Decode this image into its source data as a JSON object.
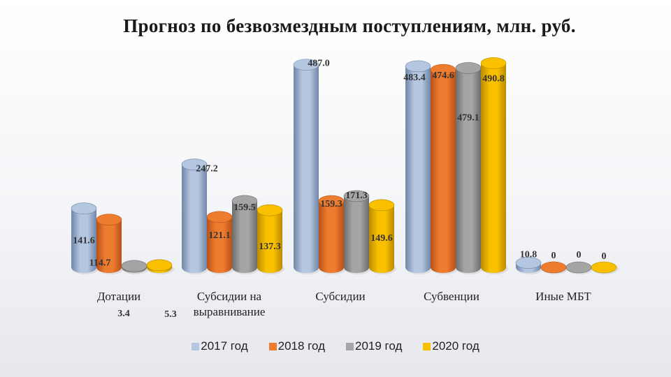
{
  "chart_data": {
    "type": "bar",
    "title": "Прогноз по безвозмездным поступлениям, млн. руб.",
    "categories": [
      "Дотации",
      "Субсидии на выравнивание",
      "Субсидии",
      "Субвенции",
      "Иные МБТ"
    ],
    "category_lines": [
      [
        "Дотации"
      ],
      [
        "Субсидии на",
        "выравнивание"
      ],
      [
        "Субсидии"
      ],
      [
        "Субвенции"
      ],
      [
        "Иные МБТ"
      ]
    ],
    "series": [
      {
        "name": "2017 год",
        "color": "#b4c6e0",
        "dark": "#6f86a8",
        "values": [
          141.6,
          247.2,
          487.0,
          483.4,
          10.8
        ]
      },
      {
        "name": "2018 год",
        "color": "#ee7c2e",
        "dark": "#b5521a",
        "values": [
          114.7,
          121.1,
          159.3,
          474.6,
          0
        ]
      },
      {
        "name": "2019 год",
        "color": "#a5a5a5",
        "dark": "#6c6c6c",
        "values": [
          3.4,
          159.5,
          171.3,
          479.1,
          0
        ]
      },
      {
        "name": "2020 год",
        "color": "#f9c000",
        "dark": "#b88c00",
        "values": [
          5.3,
          137.3,
          149.6,
          490.8,
          0
        ]
      }
    ],
    "data_labels": [
      [
        "141.6",
        "247.2",
        "487.0",
        "483.4",
        "10.8"
      ],
      [
        "114.7",
        "121.1",
        "159.3",
        "474.6",
        "0"
      ],
      [
        "3.4",
        "159.5",
        "171.3",
        "479.1",
        "0"
      ],
      [
        "5.3",
        "137.3",
        "149.6",
        "490.8",
        "0"
      ]
    ],
    "ylim": [
      0,
      500
    ],
    "grid": false,
    "legend": "bottom-center"
  }
}
